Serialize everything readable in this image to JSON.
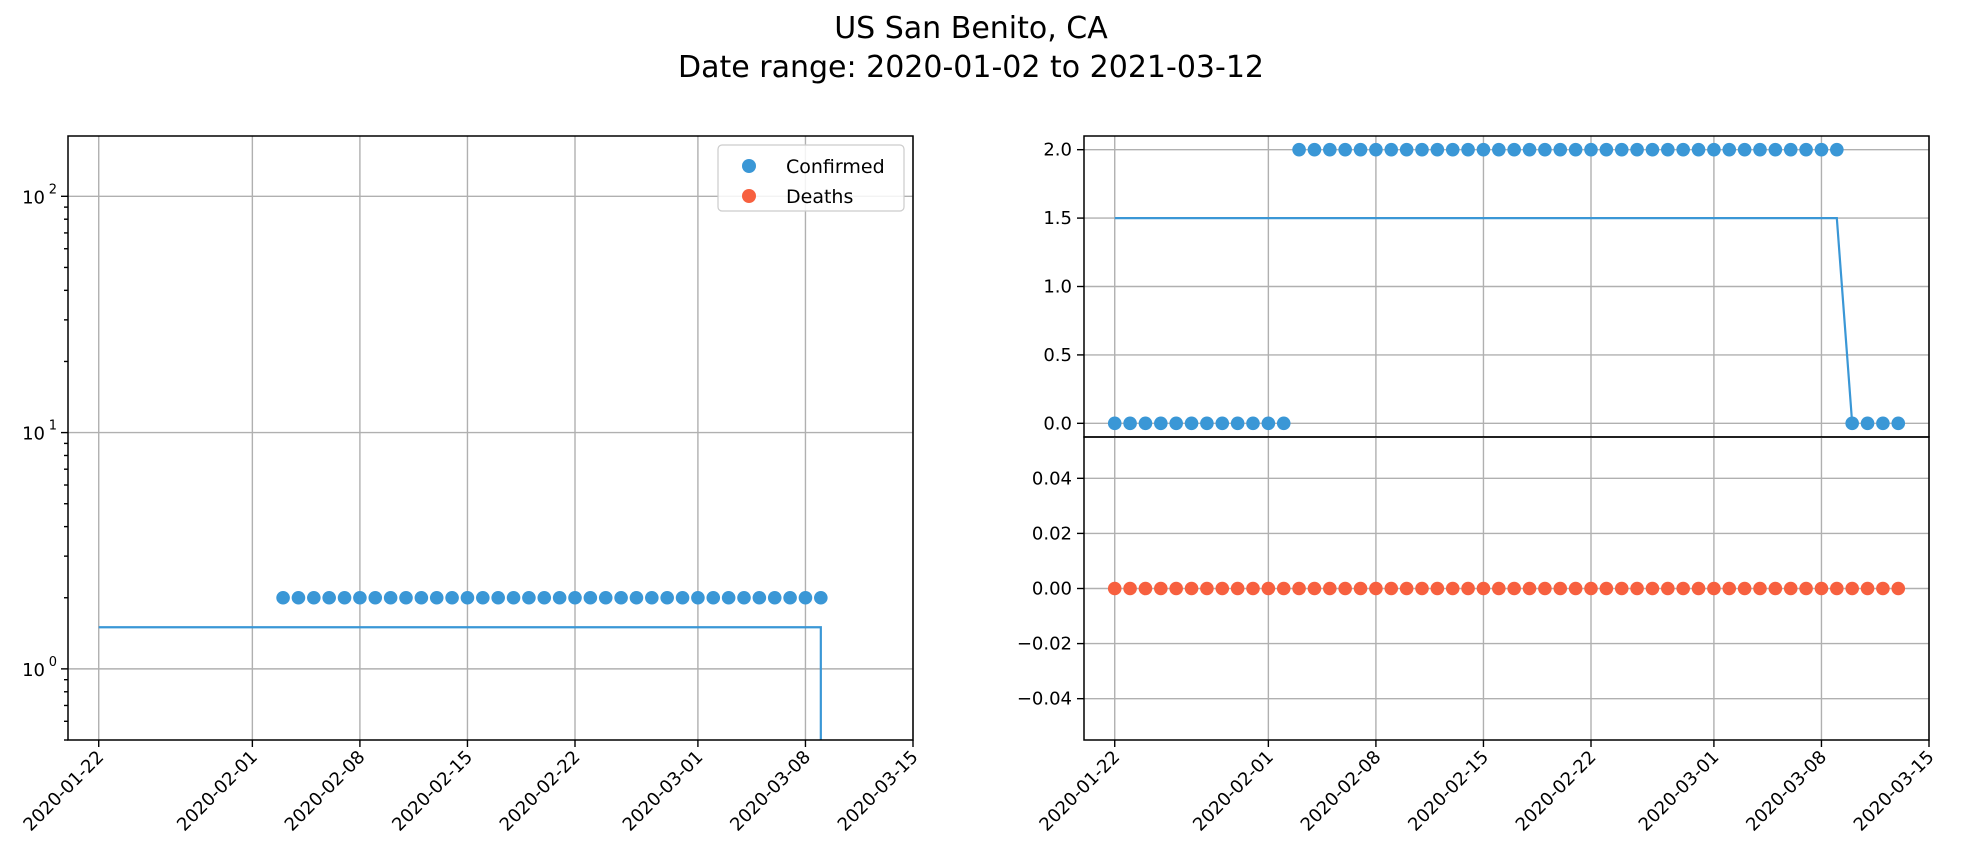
{
  "title_line1": "US San Benito, CA",
  "title_line2": "Date range: 2020-01-02 to 2021-03-12",
  "colors": {
    "confirmed": "#3a97d6",
    "deaths": "#f7603f"
  },
  "chart_data": [
    {
      "type": "scatter",
      "panel": "left",
      "yscale": "log",
      "ylim": [
        0.5,
        180
      ],
      "xlim": [
        "2020-01-20",
        "2020-03-15"
      ],
      "xticks": [
        "2020-01-22",
        "2020-02-01",
        "2020-02-08",
        "2020-02-15",
        "2020-02-22",
        "2020-03-01",
        "2020-03-08",
        "2020-03-15"
      ],
      "yticks": [
        {
          "value": 1,
          "base": "10",
          "exp": "0"
        },
        {
          "value": 10,
          "base": "10",
          "exp": "1"
        },
        {
          "value": 100,
          "base": "10",
          "exp": "2"
        }
      ],
      "grid": true,
      "legend_position": "top-right",
      "legend": [
        "Confirmed",
        "Deaths"
      ],
      "series": [
        {
          "name": "Confirmed",
          "style": "points",
          "color": "#3a97d6",
          "x_start": "2020-02-03",
          "x_end": "2020-03-09",
          "y": 2
        },
        {
          "name": "Confirmed",
          "style": "line",
          "color": "#3a97d6",
          "points": [
            [
              "2020-01-22",
              1.5
            ],
            [
              "2020-03-09",
              1.5
            ],
            [
              "2020-03-09",
              0.5
            ]
          ]
        }
      ]
    },
    {
      "type": "scatter",
      "panel": "right-top",
      "yscale": "linear",
      "ylim": [
        -0.1,
        2.1
      ],
      "xlim": [
        "2020-01-20",
        "2020-03-15"
      ],
      "yticks": [
        "0.0",
        "0.5",
        "1.0",
        "1.5",
        "2.0"
      ],
      "grid": true,
      "series": [
        {
          "name": "Confirmed",
          "style": "points",
          "color": "#3a97d6",
          "groups": [
            {
              "x_start": "2020-01-22",
              "x_end": "2020-02-02",
              "y": 0
            },
            {
              "x_start": "2020-02-03",
              "x_end": "2020-03-09",
              "y": 2
            },
            {
              "x_start": "2020-03-10",
              "x_end": "2020-03-13",
              "y": 0
            }
          ]
        },
        {
          "name": "Confirmed",
          "style": "line",
          "color": "#3a97d6",
          "points": [
            [
              "2020-01-22",
              1.5
            ],
            [
              "2020-03-09",
              1.5
            ],
            [
              "2020-03-10",
              0
            ]
          ]
        }
      ]
    },
    {
      "type": "scatter",
      "panel": "right-bottom",
      "yscale": "linear",
      "ylim": [
        -0.055,
        0.055
      ],
      "xlim": [
        "2020-01-20",
        "2020-03-15"
      ],
      "xticks": [
        "2020-01-22",
        "2020-02-01",
        "2020-02-08",
        "2020-02-15",
        "2020-02-22",
        "2020-03-01",
        "2020-03-08",
        "2020-03-15"
      ],
      "yticks": [
        "0.04",
        "0.02",
        "0.00",
        "−0.02",
        "−0.04"
      ],
      "grid": true,
      "series": [
        {
          "name": "Deaths",
          "style": "points",
          "color": "#f7603f",
          "x_start": "2020-01-22",
          "x_end": "2020-03-13",
          "y": 0
        }
      ]
    }
  ]
}
